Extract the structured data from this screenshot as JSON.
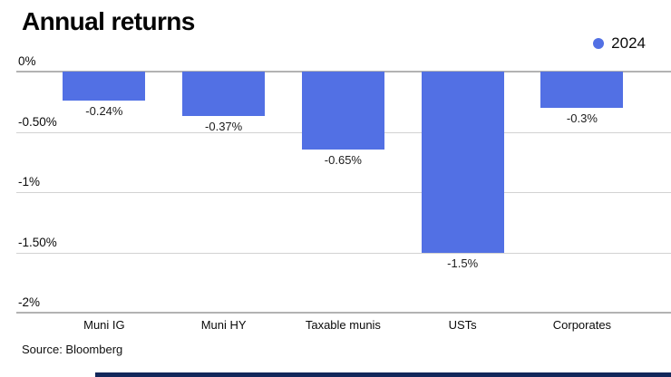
{
  "title": "Annual returns",
  "legend": {
    "label": "2024",
    "color": "#5270e4"
  },
  "source": "Source: Bloomberg",
  "colors": {
    "bar": "#5270e4",
    "gridline": "#d2d2d2",
    "axis_line": "#b3b3b3",
    "footer_bar": "#12275a",
    "background": "#ffffff",
    "text": "#0a0a0a"
  },
  "chart_data": {
    "type": "bar",
    "title": "Annual returns",
    "categories": [
      "Muni IG",
      "Muni HY",
      "Taxable munis",
      "USTs",
      "Corporates"
    ],
    "series": [
      {
        "name": "2024",
        "values": [
          -0.24,
          -0.37,
          -0.65,
          -1.5,
          -0.3
        ]
      }
    ],
    "value_labels": [
      "-0.24%",
      "-0.37%",
      "-0.65%",
      "-1.5%",
      "-0.3%"
    ],
    "y_ticks": [
      {
        "label": "0%",
        "value": 0
      },
      {
        "label": "-0.50%",
        "value": -0.5
      },
      {
        "label": "-1%",
        "value": -1
      },
      {
        "label": "-1.50%",
        "value": -1.5
      },
      {
        "label": "-2%",
        "value": -2
      }
    ],
    "ylim": [
      -2,
      0
    ],
    "unit": "%",
    "grid": true,
    "bar_color": "#5270e4",
    "legend_position": "top-right"
  }
}
